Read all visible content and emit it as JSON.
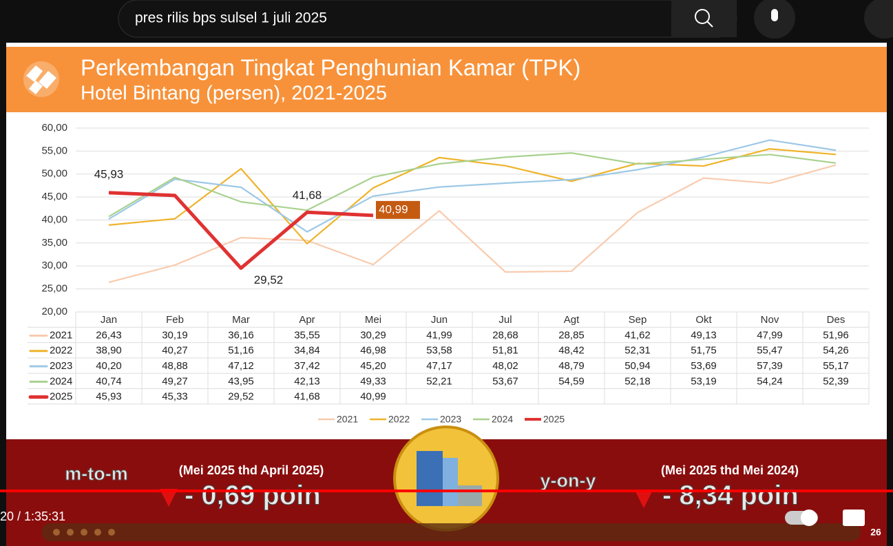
{
  "search": {
    "query": "pres rilis bps sulsel 1 juli 2025"
  },
  "header": {
    "title": "Perkembangan Tingkat Penghunian Kamar (TPK)",
    "subtitle": "Hotel Bintang (persen), 2021-2025"
  },
  "chart_data": {
    "type": "line",
    "categories": [
      "Jan",
      "Feb",
      "Mar",
      "Apr",
      "Mei",
      "Jun",
      "Jul",
      "Agt",
      "Sep",
      "Okt",
      "Nov",
      "Des"
    ],
    "ylim": [
      20,
      60
    ],
    "yticks": [
      {
        "value": 20,
        "label": "20,00"
      },
      {
        "value": 25,
        "label": "25,00"
      },
      {
        "value": 30,
        "label": "30,00"
      },
      {
        "value": 35,
        "label": "35,00"
      },
      {
        "value": 40,
        "label": "40,00"
      },
      {
        "value": 45,
        "label": "45,00"
      },
      {
        "value": 50,
        "label": "50,00"
      },
      {
        "value": 55,
        "label": "55,00"
      },
      {
        "value": 60,
        "label": "60,00"
      }
    ],
    "grid": true,
    "legend": "bottom",
    "series": [
      {
        "name": "2021",
        "color": "#f8cbad",
        "values": [
          26.43,
          30.19,
          36.16,
          35.55,
          30.29,
          41.99,
          28.68,
          28.85,
          41.62,
          49.13,
          47.99,
          51.96
        ],
        "value_labels": [
          "26,43",
          "30,19",
          "36,16",
          "35,55",
          "30,29",
          "41,99",
          "28,68",
          "28,85",
          "41,62",
          "49,13",
          "47,99",
          "51,96"
        ]
      },
      {
        "name": "2022",
        "color": "#efb32a",
        "values": [
          38.9,
          40.27,
          51.16,
          34.84,
          46.98,
          53.58,
          51.81,
          48.42,
          52.31,
          51.75,
          55.47,
          54.26
        ],
        "value_labels": [
          "38,90",
          "40,27",
          "51,16",
          "34,84",
          "46,98",
          "53,58",
          "51,81",
          "48,42",
          "52,31",
          "51,75",
          "55,47",
          "54,26"
        ]
      },
      {
        "name": "2023",
        "color": "#9dc8e6",
        "values": [
          40.2,
          48.88,
          47.12,
          37.42,
          45.2,
          47.17,
          48.02,
          48.79,
          50.94,
          53.69,
          57.39,
          55.17
        ],
        "value_labels": [
          "40,20",
          "48,88",
          "47,12",
          "37,42",
          "45,20",
          "47,17",
          "48,02",
          "48,79",
          "50,94",
          "53,69",
          "57,39",
          "55,17"
        ]
      },
      {
        "name": "2024",
        "color": "#a9d18e",
        "values": [
          40.74,
          49.27,
          43.95,
          42.13,
          49.33,
          52.21,
          53.67,
          54.59,
          52.18,
          53.19,
          54.24,
          52.39
        ],
        "value_labels": [
          "40,74",
          "49,27",
          "43,95",
          "42,13",
          "49,33",
          "52,21",
          "53,67",
          "54,59",
          "52,18",
          "53,19",
          "54,24",
          "52,39"
        ]
      },
      {
        "name": "2025",
        "color": "#e03232",
        "values": [
          45.93,
          45.33,
          29.52,
          41.68,
          40.99,
          null,
          null,
          null,
          null,
          null,
          null,
          null
        ],
        "value_labels": [
          "45,93",
          "45,33",
          "29,52",
          "41,68",
          "40,99",
          null,
          null,
          null,
          null,
          null,
          null,
          null
        ]
      }
    ]
  },
  "banner": {
    "left_label": "m-to-m",
    "left_period": "(Mei 2025 thd April 2025)",
    "left_value": "- 0,69 poin",
    "right_label": "y-on-y",
    "right_period": "(Mei 2025 thd Mei 2024)",
    "right_value": "- 8,34 poin"
  },
  "player": {
    "time": "20 / 1:35:31",
    "slide": "26"
  }
}
